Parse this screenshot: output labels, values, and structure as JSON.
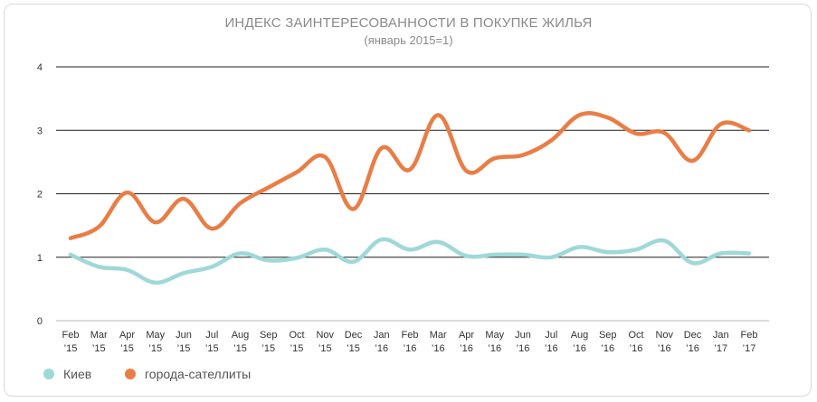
{
  "chart_data": {
    "type": "line",
    "title": "ИНДЕКС ЗАИНТЕРЕСОВАННОСТИ В ПОКУПКЕ ЖИЛЬЯ",
    "subtitle": "(январь 2015=1)",
    "xlabel": "",
    "ylabel": "",
    "ylim": [
      0,
      4
    ],
    "yticks": [
      "0",
      "1",
      "2",
      "3",
      "4"
    ],
    "grid": true,
    "legend_position": "bottom-left",
    "categories": [
      [
        "Feb",
        "’15"
      ],
      [
        "Mar",
        "’15"
      ],
      [
        "Apr",
        "’15"
      ],
      [
        "May",
        "’15"
      ],
      [
        "Jun",
        "’15"
      ],
      [
        "Jul",
        "’15"
      ],
      [
        "Aug",
        "’15"
      ],
      [
        "Sep",
        "’15"
      ],
      [
        "Oct",
        "’15"
      ],
      [
        "Nov",
        "’15"
      ],
      [
        "Dec",
        "’15"
      ],
      [
        "Jan",
        "’16"
      ],
      [
        "Feb",
        "’16"
      ],
      [
        "Mar",
        "’16"
      ],
      [
        "Apr",
        "’16"
      ],
      [
        "May",
        "’16"
      ],
      [
        "Jun",
        "’16"
      ],
      [
        "Jul",
        "’16"
      ],
      [
        "Aug",
        "’16"
      ],
      [
        "Sep",
        "’16"
      ],
      [
        "Oct",
        "’16"
      ],
      [
        "Nov",
        "’16"
      ],
      [
        "Dec",
        "’16"
      ],
      [
        "Jan",
        "’17"
      ],
      [
        "Feb",
        "’17"
      ]
    ],
    "series": [
      {
        "name": "Киев",
        "color": "#9fd8d8",
        "values": [
          1.04,
          0.85,
          0.8,
          0.6,
          0.75,
          0.85,
          1.06,
          0.95,
          0.99,
          1.12,
          0.93,
          1.28,
          1.12,
          1.24,
          1.02,
          1.04,
          1.04,
          1.0,
          1.16,
          1.08,
          1.12,
          1.26,
          0.91,
          1.06,
          1.06
        ]
      },
      {
        "name": "города-сателлиты",
        "color": "#ea7d45",
        "values": [
          1.3,
          1.48,
          2.02,
          1.55,
          1.92,
          1.45,
          1.85,
          2.1,
          2.34,
          2.58,
          1.76,
          2.72,
          2.38,
          3.24,
          2.36,
          2.56,
          2.61,
          2.84,
          3.24,
          3.2,
          2.95,
          2.96,
          2.52,
          3.1,
          3.0
        ]
      }
    ]
  }
}
